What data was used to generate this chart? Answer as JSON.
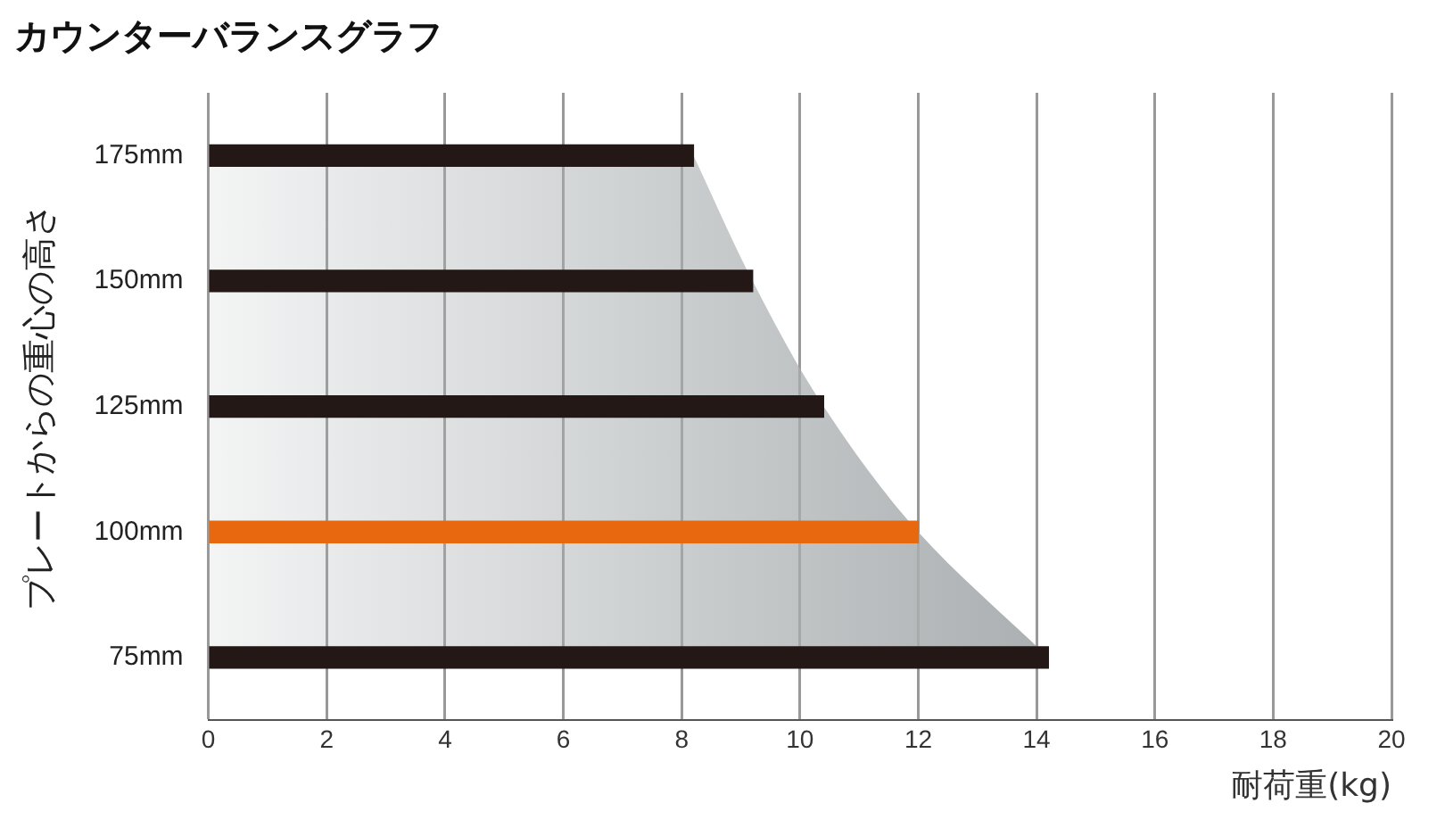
{
  "chart_data": {
    "type": "bar",
    "orientation": "horizontal",
    "title": "カウンターバランスグラフ",
    "xlabel": "耐荷重(kg)",
    "ylabel": "プレートからの重心の高さ",
    "categories": [
      "175mm",
      "150mm",
      "125mm",
      "100mm",
      "75mm"
    ],
    "series": [
      {
        "type": "area",
        "color": "#a9aeb0",
        "values": [
          8.2,
          9.2,
          10.4,
          12,
          14.2
        ]
      },
      {
        "colors": [
          "#231815",
          "#231815",
          "#231815",
          "#e8680f",
          "#231815"
        ],
        "values": [
          8.2,
          9.2,
          10.4,
          12,
          14.2
        ]
      }
    ],
    "xlim": [
      0,
      20
    ],
    "xticks": [
      0,
      2,
      4,
      6,
      8,
      10,
      12,
      14,
      16,
      18,
      20
    ],
    "grid": "x",
    "legend": false
  }
}
